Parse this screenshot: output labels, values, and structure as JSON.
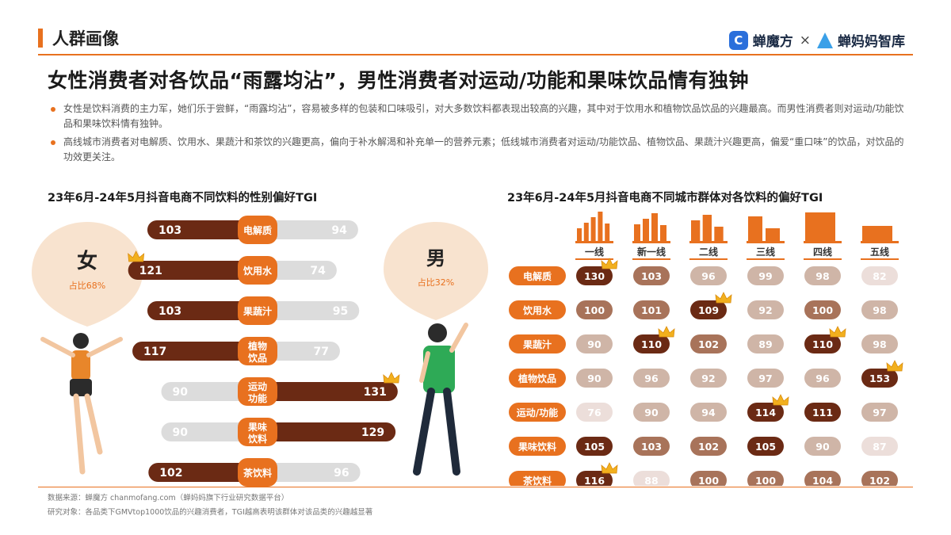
{
  "header": {
    "section": "人群画像",
    "brand_left": "蝉魔方",
    "brand_sep": "×",
    "brand_right": "蝉妈妈智库",
    "title": "女性消费者对各饮品“雨露均沾”，男性消费者对运动/功能和果味饮品情有独钟"
  },
  "bullets": [
    "女性是饮料消费的主力军，她们乐于尝鲜，“雨露均沾”，容易被多样的包装和口味吸引，对大多数饮料都表现出较高的兴趣，其中对于饮用水和植物饮品饮品的兴趣最高。而男性消费者则对运动/功能饮品和果味饮料情有独钟。",
    "高线城市消费者对电解质、饮用水、果蔬汁和茶饮的兴趣更高，偏向于补水解渴和补充单一的营养元素；低线城市消费者对运动/功能饮品、植物饮品、果蔬汁兴趣更高，偏爱“重口味”的饮品，对饮品的功效更关注。"
  ],
  "colors": {
    "accent": "#e8711f",
    "dark_brown": "#6b2a14",
    "mid_brown": "#a8735a",
    "light_tan": "#d7c3b9",
    "grey_bar": "#dcdcdc",
    "bubble": "#f8e3cf"
  },
  "chart_data": [
    {
      "type": "bar",
      "title": "23年6月-24年5月抖音电商不同饮料的性别偏好TGI",
      "categories": [
        "电解质",
        "饮用水",
        "果蔬汁",
        "植物饮品",
        "运动功能",
        "果味饮料",
        "茶饮料"
      ],
      "series": [
        {
          "name": "女",
          "values": [
            103,
            121,
            103,
            117,
            90,
            90,
            102
          ]
        },
        {
          "name": "男",
          "values": [
            94,
            74,
            95,
            77,
            131,
            129,
            96
          ]
        }
      ],
      "female_label": "女",
      "female_share": "占比68%",
      "male_label": "男",
      "male_share": "占比32%"
    },
    {
      "type": "heatmap",
      "title": "23年6月-24年5月抖音电商不同城市群体对各饮料的偏好TGI",
      "columns": [
        "一线",
        "新一线",
        "二线",
        "三线",
        "四线",
        "五线"
      ],
      "rows": [
        "电解质",
        "饮用水",
        "果蔬汁",
        "植物饮品",
        "运动/功能",
        "果味饮料",
        "茶饮料"
      ],
      "values": [
        [
          130,
          103,
          96,
          99,
          98,
          82
        ],
        [
          100,
          101,
          109,
          92,
          100,
          98
        ],
        [
          90,
          110,
          102,
          89,
          110,
          98
        ],
        [
          90,
          96,
          92,
          97,
          96,
          153
        ],
        [
          76,
          90,
          94,
          114,
          111,
          97
        ],
        [
          105,
          103,
          102,
          105,
          90,
          87
        ],
        [
          116,
          88,
          100,
          100,
          104,
          102
        ]
      ]
    }
  ],
  "footer": {
    "source": "数据来源：蝉魔方 chanmofang.com（蝉妈妈旗下行业研究数据平台）",
    "note": "研究对象：各品类下GMVtop1000饮品的兴趣消费者，TGI越高表明该群体对该品类的兴趣越显著"
  }
}
